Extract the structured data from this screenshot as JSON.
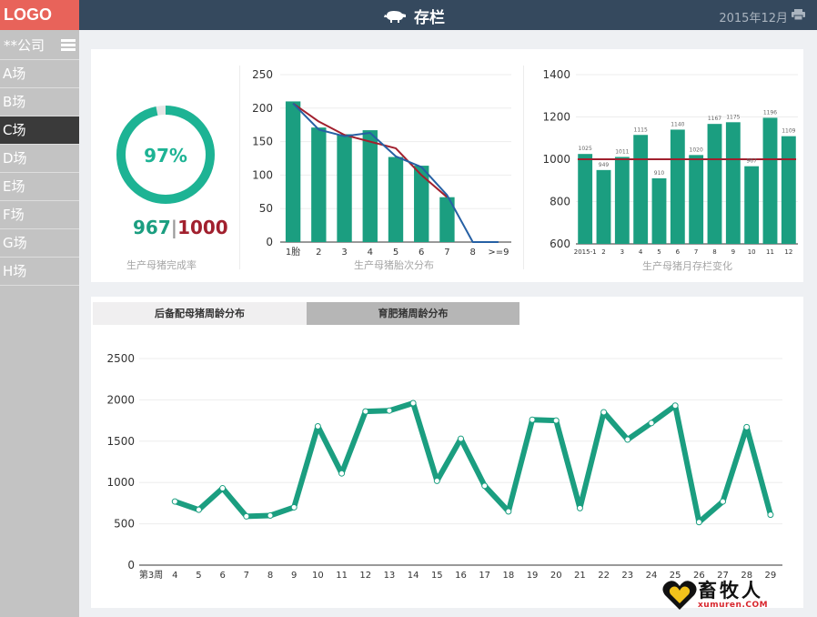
{
  "app": {
    "logo": "LOGO",
    "title": "存栏",
    "date": "2015年12月"
  },
  "sidebar": {
    "company": "**公司",
    "items": [
      {
        "label": "A场"
      },
      {
        "label": "B场"
      },
      {
        "label": "C场",
        "active": true
      },
      {
        "label": "D场"
      },
      {
        "label": "E场"
      },
      {
        "label": "F场"
      },
      {
        "label": "G场"
      },
      {
        "label": "H场"
      }
    ]
  },
  "completion": {
    "percent_label": "97%",
    "percent": 0.967,
    "actual": "967",
    "separator": "|",
    "target": "1000",
    "caption": "生产母猪完成率",
    "colors": {
      "accent": "#1db394",
      "target": "#a1202e",
      "track": "#e6e6e6"
    }
  },
  "tabs": {
    "tab1": "后备配母猪周龄分布",
    "tab2": "育肥猪周龄分布"
  },
  "watermark": {
    "name": "畜牧人",
    "site": "xumuren.COM"
  },
  "chart_data": [
    {
      "type": "bar",
      "title": "生产母猪胎次分布",
      "categories": [
        "1胎",
        "2",
        "3",
        "4",
        "5",
        "6",
        "7",
        "8",
        ">=9"
      ],
      "ylim": [
        0,
        250
      ],
      "yticks": [
        0,
        50,
        100,
        150,
        200,
        250
      ],
      "series": [
        {
          "kind": "bar",
          "values": [
            210,
            171,
            161,
            167,
            127,
            114,
            67,
            0,
            0
          ],
          "color": "#1b9e80"
        },
        {
          "kind": "line",
          "values": [
            207,
            180,
            160,
            150,
            140,
            100,
            67,
            null,
            null
          ],
          "color": "#a1202e"
        },
        {
          "kind": "line",
          "values": [
            207,
            168,
            158,
            163,
            128,
            112,
            70,
            0,
            0
          ],
          "color": "#2660a4"
        }
      ],
      "grid": true
    },
    {
      "type": "bar",
      "title": "生产母猪月存栏变化",
      "categories": [
        "2015-1",
        "2",
        "3",
        "4",
        "5",
        "6",
        "7",
        "8",
        "9",
        "10",
        "11",
        "12"
      ],
      "ylim": [
        600,
        1400
      ],
      "yticks": [
        600,
        800,
        1000,
        1200,
        1400
      ],
      "series": [
        {
          "kind": "bar",
          "values": [
            1025,
            949,
            1011,
            1115,
            910,
            1140,
            1020,
            1167,
            1175,
            967,
            1196,
            1109
          ],
          "color": "#1b9e80"
        },
        {
          "kind": "line",
          "values": [
            1000,
            1000,
            1000,
            1000,
            1000,
            1000,
            1000,
            1000,
            1000,
            1000,
            1000,
            1000
          ],
          "color": "#a1202e"
        }
      ],
      "data_labels": [
        "1025",
        "949",
        "1011",
        "1115",
        "910",
        "1140",
        "1020",
        "1167",
        "1175",
        "967",
        "1196",
        "1109"
      ],
      "grid": true
    },
    {
      "type": "line",
      "title": "",
      "categories": [
        "第3周",
        "4",
        "5",
        "6",
        "7",
        "8",
        "9",
        "10",
        "11",
        "12",
        "13",
        "14",
        "15",
        "16",
        "17",
        "18",
        "19",
        "20",
        "21",
        "22",
        "23",
        "24",
        "25",
        "26",
        "27",
        "28",
        "29"
      ],
      "ylim": [
        0,
        2500
      ],
      "yticks": [
        0,
        500,
        1000,
        1500,
        2000,
        2500
      ],
      "series": [
        {
          "kind": "line",
          "values": [
            null,
            770,
            670,
            930,
            590,
            600,
            700,
            1680,
            1110,
            1860,
            1870,
            1960,
            1020,
            1530,
            960,
            650,
            1760,
            1750,
            690,
            1850,
            1520,
            1720,
            1930,
            520,
            770,
            1670,
            610
          ],
          "color": "#1b9e80"
        }
      ],
      "grid": true
    }
  ]
}
